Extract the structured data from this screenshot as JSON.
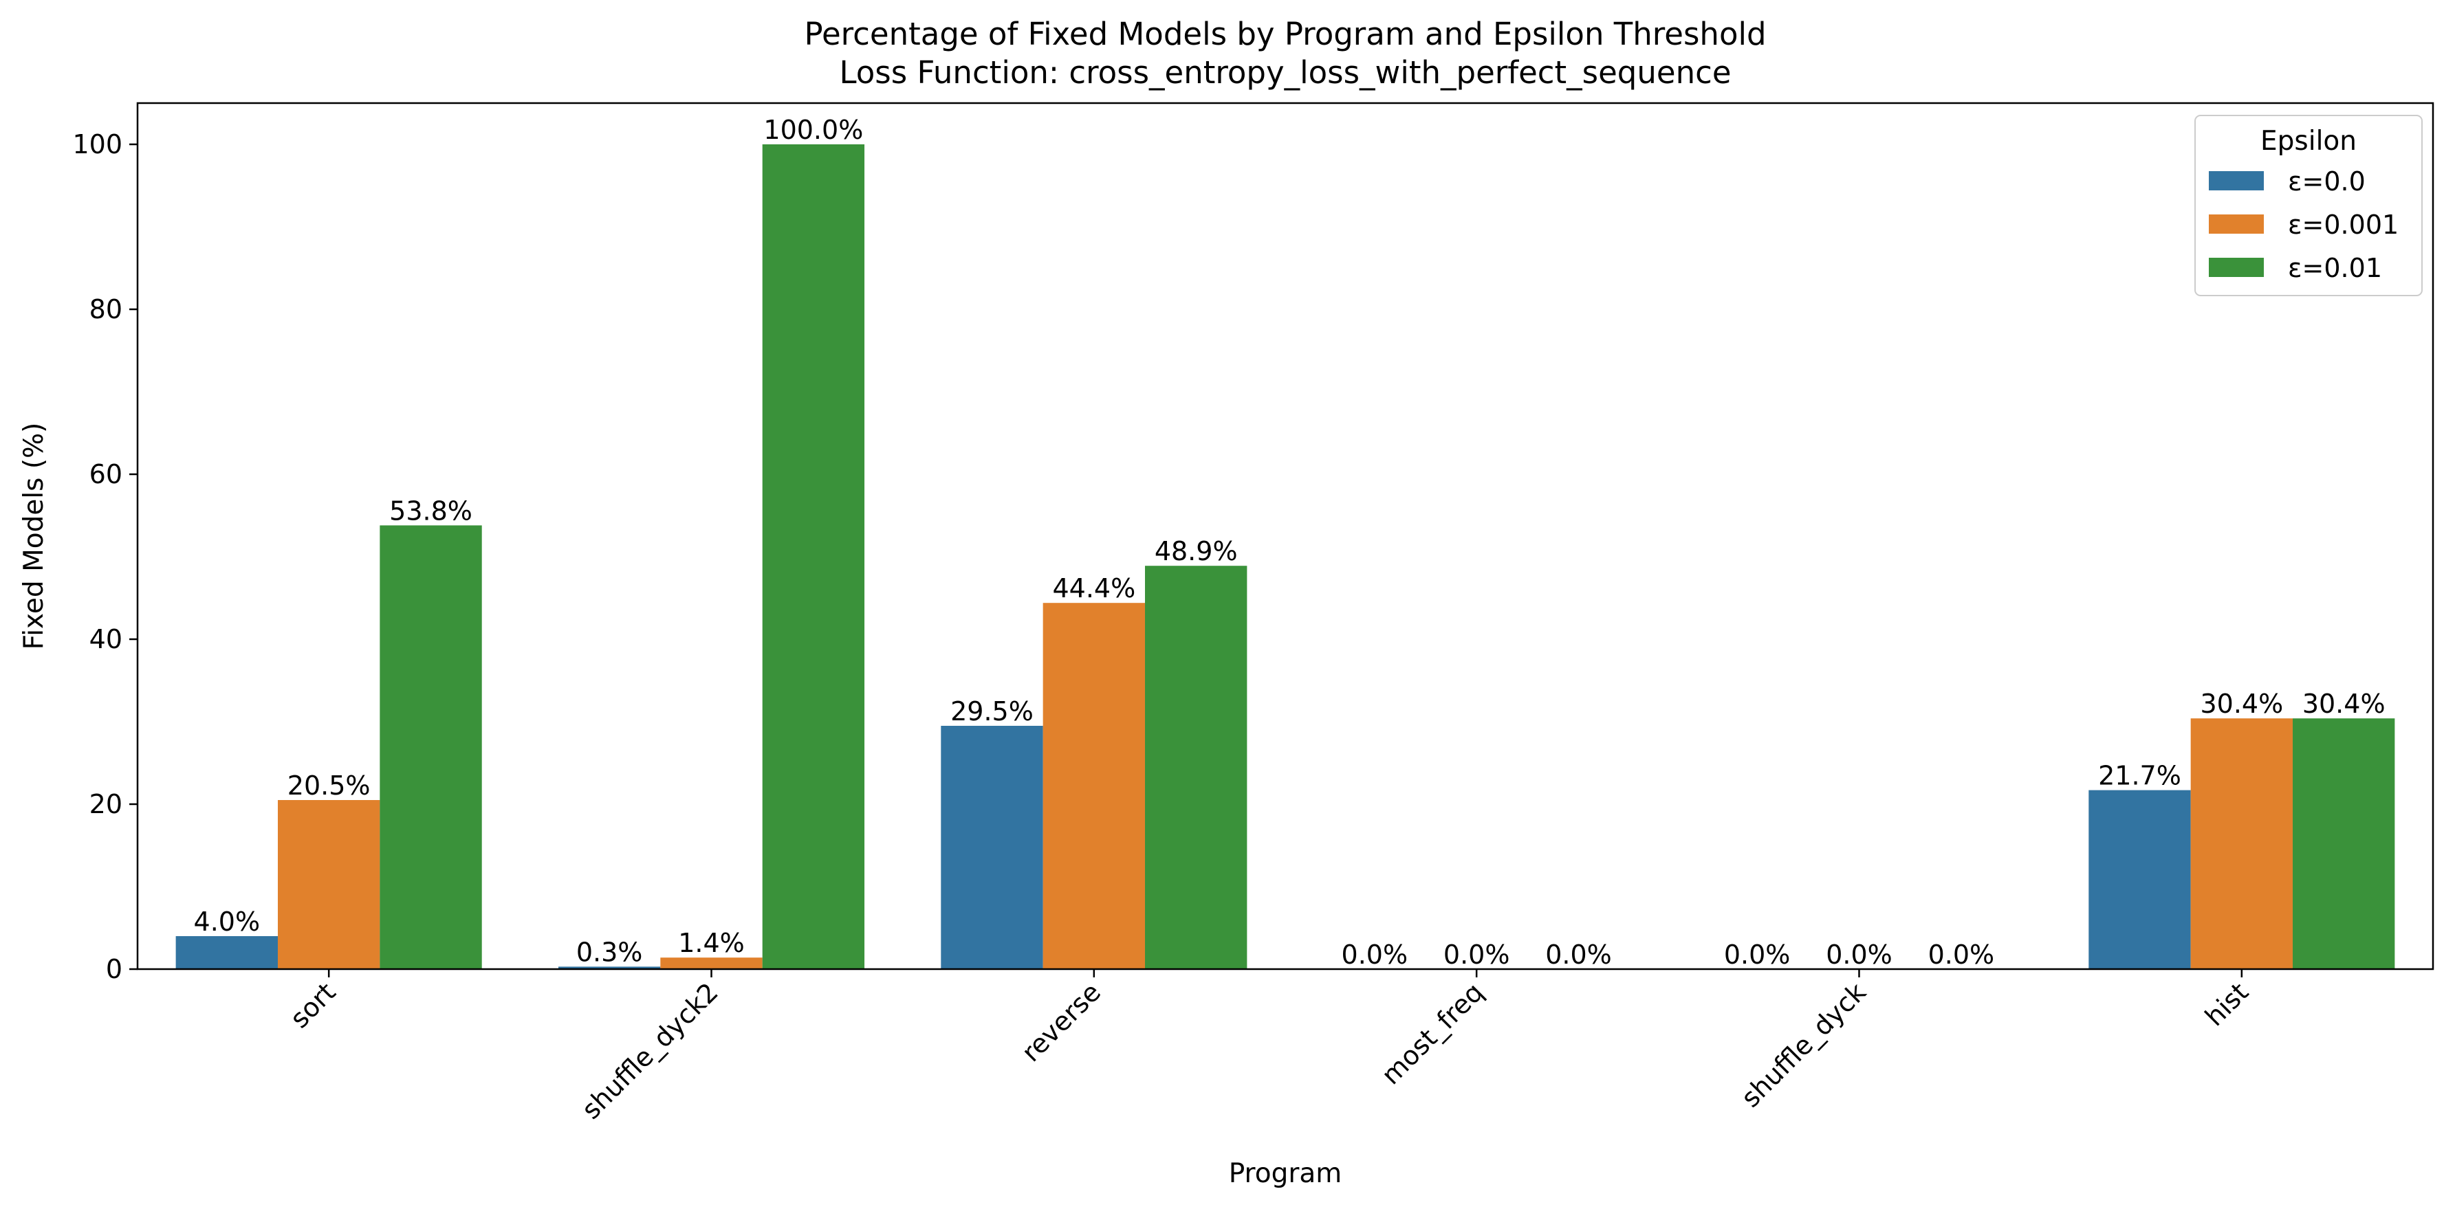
{
  "chart_data": {
    "type": "bar",
    "title": "Percentage of Fixed Models by Program and Epsilon Threshold",
    "subtitle": "Loss Function: cross_entropy_loss_with_perfect_sequence",
    "xlabel": "Program",
    "ylabel": "Fixed Models (%)",
    "ylim": [
      0,
      105
    ],
    "yticks": [
      0,
      20,
      40,
      60,
      80,
      100
    ],
    "categories": [
      "sort",
      "shuffle_dyck2",
      "reverse",
      "most_freq",
      "shuffle_dyck",
      "hist"
    ],
    "legend": {
      "title": "Epsilon",
      "placement": "top-right"
    },
    "grid": false,
    "series": [
      {
        "name": "ε=0.0",
        "color": "#3274a1",
        "values": [
          4.0,
          0.3,
          29.5,
          0.0,
          0.0,
          21.7
        ],
        "labels": [
          "4.0%",
          "0.3%",
          "29.5%",
          "0.0%",
          "0.0%",
          "21.7%"
        ]
      },
      {
        "name": "ε=0.001",
        "color": "#e1812c",
        "values": [
          20.5,
          1.4,
          44.4,
          0.0,
          0.0,
          30.4
        ],
        "labels": [
          "20.5%",
          "1.4%",
          "44.4%",
          "0.0%",
          "0.0%",
          "30.4%"
        ]
      },
      {
        "name": "ε=0.01",
        "color": "#3a923a",
        "values": [
          53.8,
          100.0,
          48.9,
          0.0,
          0.0,
          30.4
        ],
        "labels": [
          "53.8%",
          "100.0%",
          "48.9%",
          "0.0%",
          "0.0%",
          "30.4%"
        ]
      }
    ]
  }
}
